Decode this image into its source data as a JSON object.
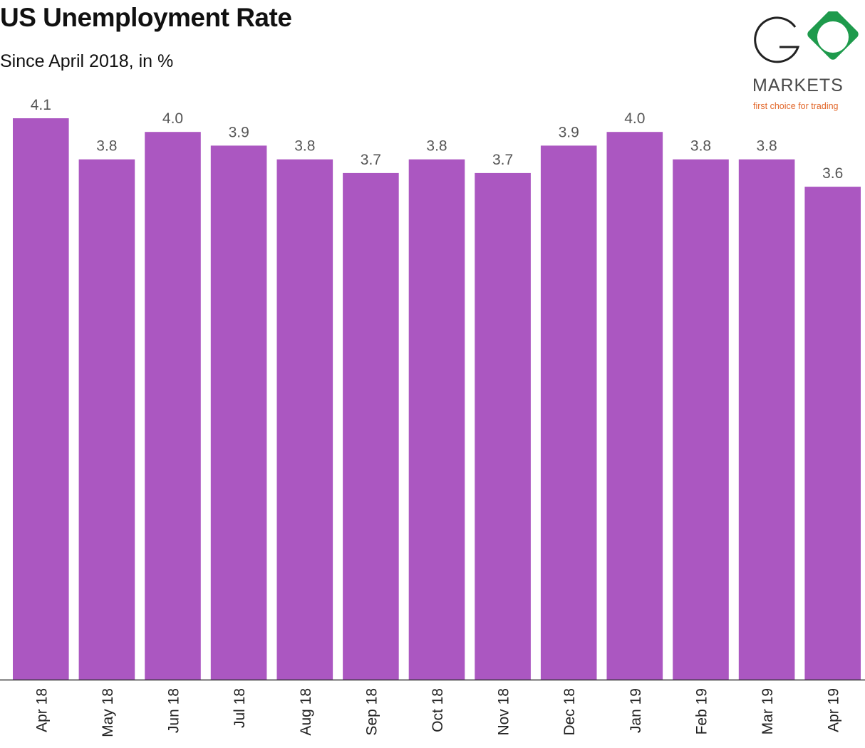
{
  "title": "US Unemployment Rate",
  "subtitle": "Since April 2018, in %",
  "logo": {
    "letters": "GO",
    "wordmark": "MARKETS",
    "tagline": "first choice for trading",
    "colors": {
      "ring": "#222222",
      "diamond": "#1e9a4c",
      "tagline": "#e2672a"
    }
  },
  "chart_data": {
    "type": "bar",
    "title": "US Unemployment Rate",
    "subtitle": "Since April 2018, in %",
    "categories": [
      "Apr 18",
      "May 18",
      "Jun 18",
      "Jul 18",
      "Aug 18",
      "Sep 18",
      "Oct 18",
      "Nov 18",
      "Dec 18",
      "Jan 19",
      "Feb 19",
      "Mar 19",
      "Apr 19"
    ],
    "values": [
      4.1,
      3.8,
      4.0,
      3.9,
      3.8,
      3.7,
      3.8,
      3.7,
      3.9,
      4.0,
      3.8,
      3.8,
      3.6
    ],
    "labels": [
      "4.1",
      "3.8",
      "4.0",
      "3.9",
      "3.8",
      "3.7",
      "3.8",
      "3.7",
      "3.9",
      "4.0",
      "3.8",
      "3.8",
      "3.6"
    ],
    "ylim": [
      0,
      4.1
    ],
    "grid": false,
    "colors": {
      "bar": "#ab57c1",
      "value_label": "#555555",
      "axis": "#333333",
      "tick_label": "#222222"
    }
  }
}
